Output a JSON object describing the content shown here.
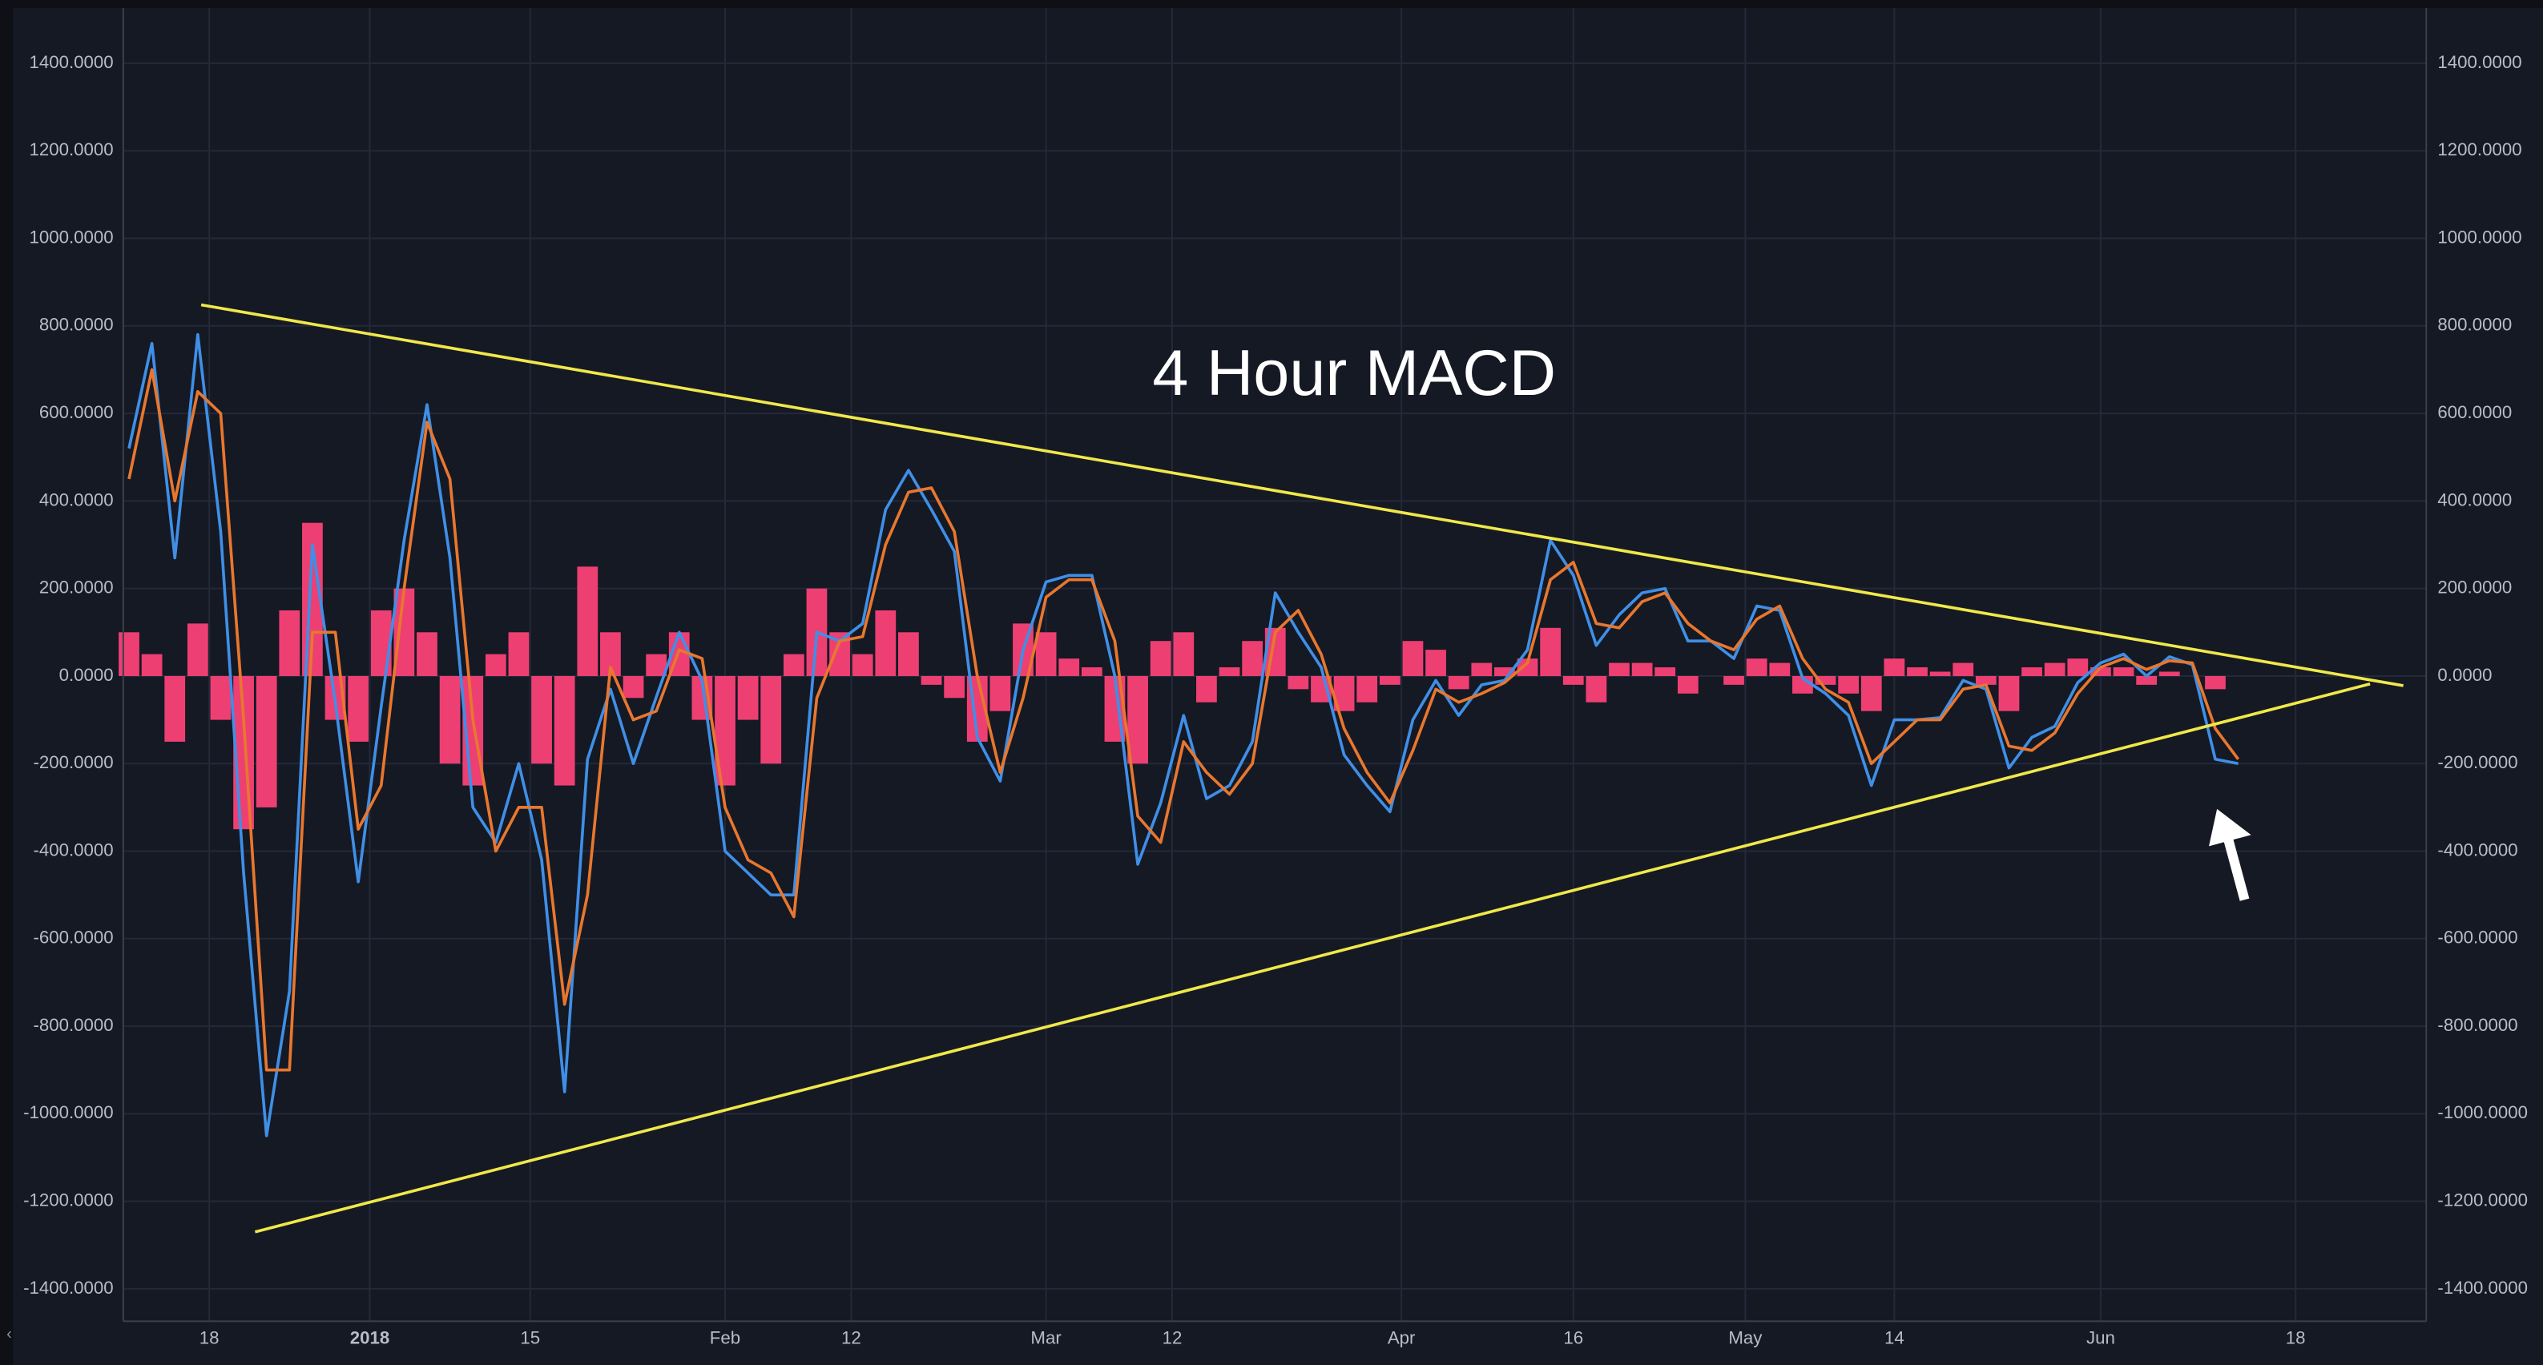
{
  "chart_data": {
    "type": "line",
    "title": "4 Hour MACD",
    "xlim": [
      -7.5,
      193.4
    ],
    "ylim": [
      -1474,
      1526
    ],
    "grid": true,
    "xticks": [
      {
        "value": 0,
        "label": "18"
      },
      {
        "value": 14,
        "label": "2018"
      },
      {
        "value": 28,
        "label": "15"
      },
      {
        "value": 45,
        "label": "Feb"
      },
      {
        "value": 56,
        "label": "12"
      },
      {
        "value": 73,
        "label": "Mar"
      },
      {
        "value": 84,
        "label": "12"
      },
      {
        "value": 104,
        "label": "Apr"
      },
      {
        "value": 119,
        "label": "16"
      },
      {
        "value": 134,
        "label": "May"
      },
      {
        "value": 147,
        "label": "14"
      },
      {
        "value": 165,
        "label": "Jun"
      },
      {
        "value": 182,
        "label": "18"
      }
    ],
    "yticks": [
      {
        "value": -1400,
        "label": "-1400.0000"
      },
      {
        "value": -1200,
        "label": "-1200.0000"
      },
      {
        "value": -1000,
        "label": "-1000.0000"
      },
      {
        "value": -800,
        "label": "-800.0000"
      },
      {
        "value": -600,
        "label": "-600.0000"
      },
      {
        "value": -400,
        "label": "-400.0000"
      },
      {
        "value": -200,
        "label": "-200.0000"
      },
      {
        "value": 0,
        "label": "0.0000"
      },
      {
        "value": 200,
        "label": "200.0000"
      },
      {
        "value": 400,
        "label": "400.0000"
      },
      {
        "value": 600,
        "label": "600.0000"
      },
      {
        "value": 800,
        "label": "800.0000"
      },
      {
        "value": 1000,
        "label": "1000.0000"
      },
      {
        "value": 1200,
        "label": "1200.0000"
      },
      {
        "value": 1400,
        "label": "1400.0000"
      }
    ],
    "x": [
      -7,
      -5,
      -3,
      -1,
      1,
      3,
      5,
      7,
      9,
      11,
      13,
      15,
      17,
      19,
      21,
      23,
      25,
      27,
      29,
      31,
      33,
      35,
      37,
      39,
      41,
      43,
      45,
      47,
      49,
      51,
      53,
      55,
      57,
      59,
      61,
      63,
      65,
      67,
      69,
      71,
      73,
      75,
      77,
      79,
      81,
      83,
      85,
      87,
      89,
      91,
      93,
      95,
      97,
      99,
      101,
      103,
      105,
      107,
      109,
      111,
      113,
      115,
      117,
      119,
      121,
      123,
      125,
      127,
      129,
      131,
      133,
      135,
      137,
      139,
      141,
      143,
      145,
      147,
      149,
      151,
      153,
      155,
      157,
      159,
      161,
      163,
      165,
      167,
      169,
      171,
      173,
      175,
      177
    ],
    "series": [
      {
        "type": "bar",
        "color": "#ee3f73",
        "values": [
          100,
          50,
          -150,
          120,
          -100,
          -350,
          -300,
          150,
          350,
          -100,
          -150,
          150,
          200,
          100,
          -200,
          -250,
          50,
          100,
          -200,
          -250,
          250,
          100,
          -50,
          50,
          100,
          -100,
          -250,
          -100,
          -200,
          50,
          200,
          100,
          50,
          150,
          100,
          -20,
          -50,
          -150,
          -80,
          120,
          100,
          40,
          20,
          -150,
          -200,
          80,
          100,
          -60,
          20,
          80,
          110,
          -30,
          -60,
          -80,
          -60,
          -20,
          80,
          60,
          -30,
          30,
          20,
          40,
          110,
          -20,
          -60,
          30,
          30,
          20,
          -40,
          0,
          -20,
          40,
          30,
          -40,
          -20,
          -40,
          -80,
          40,
          20,
          10,
          30,
          -20,
          -80,
          20,
          30,
          40,
          20,
          20,
          -20,
          10,
          0,
          -30,
          0
        ]
      },
      {
        "type": "line",
        "color": "#3f8fe6",
        "values": [
          520,
          760,
          270,
          780,
          330,
          -450,
          -1050,
          -720,
          300,
          -60,
          -470,
          -70,
          310,
          620,
          270,
          -300,
          -380,
          -200,
          -420,
          -950,
          -190,
          -30,
          -200,
          -48,
          100,
          -10,
          -400,
          -450,
          -500,
          -500,
          100,
          80,
          120,
          380,
          470,
          380,
          285,
          -140,
          -240,
          60,
          215,
          230,
          230,
          0,
          -430,
          -290,
          -90,
          -280,
          -250,
          -150,
          190,
          100,
          20,
          -180,
          -250,
          -310,
          -100,
          -10,
          -90,
          -20,
          -10,
          60,
          310,
          230,
          70,
          140,
          190,
          200,
          80,
          80,
          40,
          160,
          150,
          -5,
          -40,
          -90,
          -250,
          -100,
          -100,
          -95,
          -10,
          -30,
          -210,
          -140,
          -115,
          -15,
          30,
          50,
          0,
          44,
          26,
          -190,
          -200
        ]
      },
      {
        "type": "line",
        "color": "#e8772e",
        "values": [
          450,
          700,
          400,
          650,
          600,
          -100,
          -900,
          -900,
          100,
          100,
          -350,
          -250,
          200,
          580,
          450,
          -100,
          -400,
          -300,
          -300,
          -750,
          -500,
          20,
          -100,
          -80,
          60,
          40,
          -300,
          -420,
          -450,
          -550,
          -50,
          80,
          90,
          300,
          420,
          430,
          330,
          0,
          -220,
          -50,
          180,
          220,
          220,
          80,
          -320,
          -380,
          -150,
          -220,
          -270,
          -200,
          100,
          150,
          50,
          -120,
          -220,
          -290,
          -170,
          -30,
          -60,
          -40,
          -15,
          30,
          220,
          260,
          120,
          110,
          170,
          190,
          120,
          80,
          60,
          130,
          160,
          40,
          -30,
          -60,
          -200,
          -150,
          -100,
          -100,
          -30,
          -20,
          -160,
          -170,
          -130,
          -40,
          20,
          40,
          15,
          35,
          30,
          -120,
          -190
        ]
      }
    ],
    "trendlines": [
      {
        "color": "#f0e84a",
        "x": [
          -0.7,
          191.4
        ],
        "y": [
          848,
          -22
        ]
      },
      {
        "color": "#f0e84a",
        "x": [
          4.0,
          188.5
        ],
        "y": [
          -1270,
          -18
        ]
      }
    ]
  }
}
